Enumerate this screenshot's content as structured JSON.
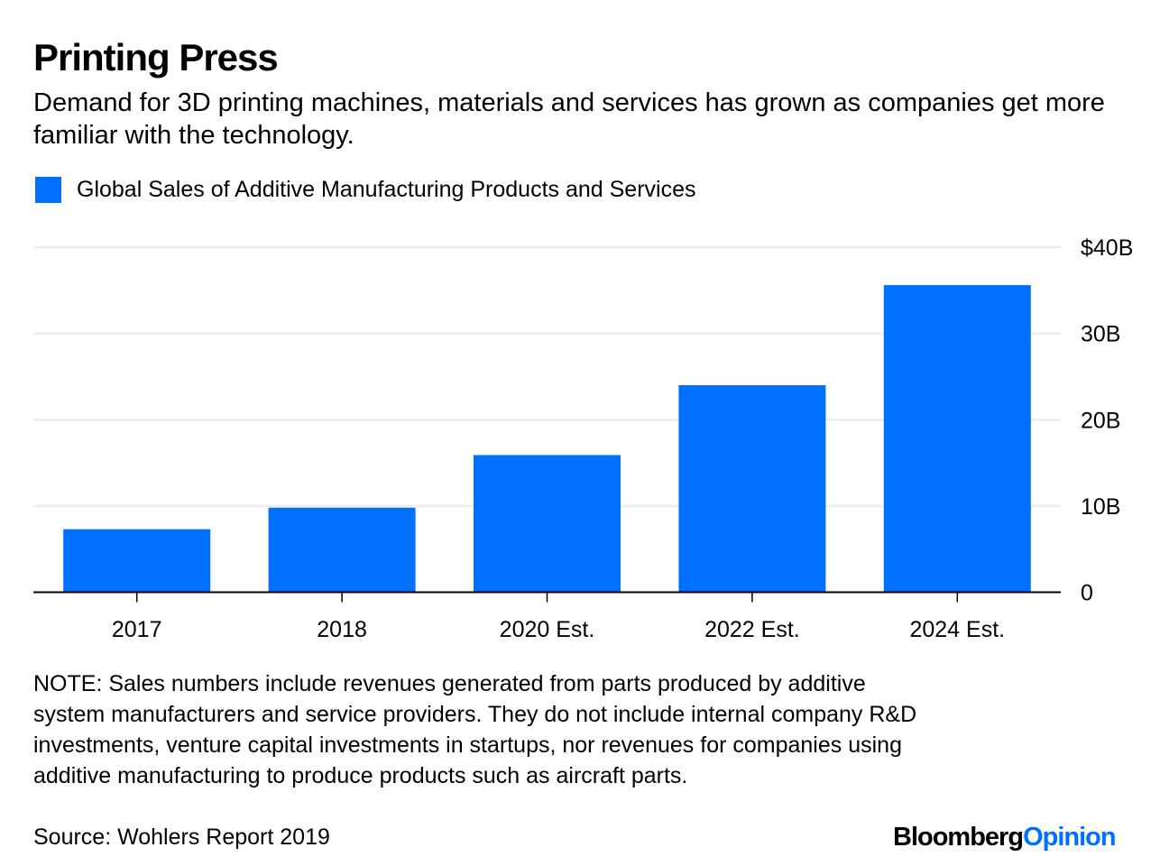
{
  "header": {
    "title": "Printing Press",
    "subtitle": "Demand for 3D printing machines, materials and services has grown as companies get more familiar with the technology."
  },
  "legend": {
    "label": "Global Sales of Additive Manufacturing Products and Services",
    "color": "#0070ff"
  },
  "footer": {
    "note": "NOTE: Sales numbers include revenues generated from parts produced by additive system manufacturers and service providers. They do not include internal company R&D investments, venture capital investments in startups, nor revenues for companies using additive manufacturing to produce products such as aircraft parts.",
    "source": "Source: Wohlers Report 2019",
    "brand_part1": "Bloomberg",
    "brand_part2": "Opinion"
  },
  "chart_data": {
    "type": "bar",
    "title": "Printing Press",
    "subtitle": "Demand for 3D printing machines, materials and services has grown as companies get more familiar with the technology.",
    "categories": [
      "2017",
      "2018",
      "2020 Est.",
      "2022 Est.",
      "2024 Est."
    ],
    "series": [
      {
        "name": "Global Sales of Additive Manufacturing Products and Services",
        "color": "#0070ff",
        "values": [
          7.3,
          9.8,
          15.9,
          24.0,
          35.6
        ]
      }
    ],
    "xlabel": "",
    "ylabel": "",
    "units": "$ billions",
    "ylim": [
      0,
      40
    ],
    "yticks": [
      0,
      10,
      20,
      30,
      40
    ],
    "ytick_labels": [
      "0",
      "10B",
      "20B",
      "30B",
      "$40B"
    ],
    "y_axis_side": "right",
    "grid": true,
    "legend_position": "top-left"
  }
}
